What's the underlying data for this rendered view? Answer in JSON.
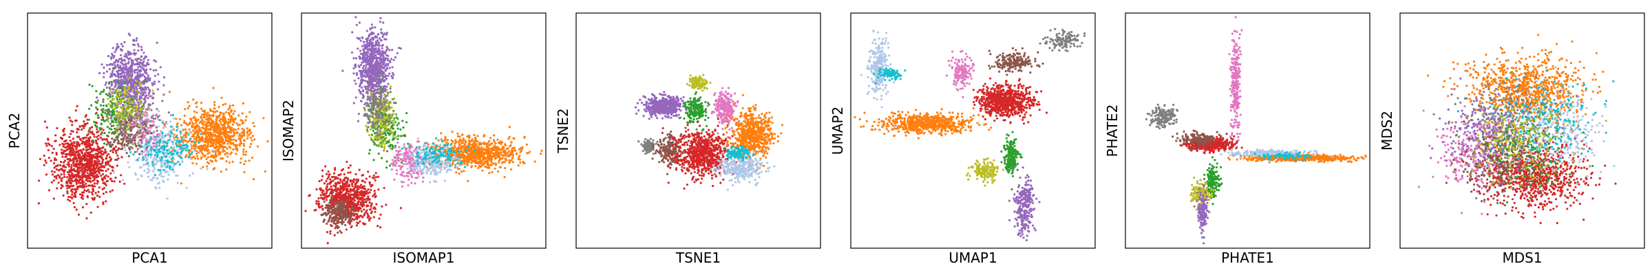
{
  "figure": {
    "palette": {
      "red": "#d62728",
      "orange": "#ff7f0e",
      "purple": "#9467bd",
      "green": "#2ca02c",
      "light_blue": "#aec7e8",
      "cyan": "#17becf",
      "pink": "#e377c2",
      "brown": "#8c564b",
      "gray": "#7f7f7f",
      "olive": "#bcbd22"
    }
  },
  "chart_data": [
    {
      "type": "scatter",
      "xlabel": "PCA1",
      "ylabel": "PCA2",
      "xticks": [],
      "yticks": [],
      "grid": false,
      "xlim": [
        0,
        100
      ],
      "ylim": [
        0,
        100
      ],
      "clusters": [
        {
          "color": "red",
          "center": [
            22,
            36
          ],
          "spread": [
            9,
            12
          ],
          "count": 900
        },
        {
          "color": "orange",
          "center": [
            77,
            48
          ],
          "spread": [
            11,
            9
          ],
          "count": 800
        },
        {
          "color": "purple",
          "center": [
            42,
            72
          ],
          "spread": [
            7,
            11
          ],
          "count": 700
        },
        {
          "color": "light_blue",
          "center": [
            54,
            40
          ],
          "spread": [
            9,
            9
          ],
          "count": 300
        },
        {
          "color": "green",
          "center": [
            36,
            58
          ],
          "spread": [
            7,
            10
          ],
          "count": 200
        },
        {
          "color": "pink",
          "center": [
            46,
            50
          ],
          "spread": [
            6,
            7
          ],
          "count": 150
        },
        {
          "color": "cyan",
          "center": [
            58,
            42
          ],
          "spread": [
            8,
            7
          ],
          "count": 150
        },
        {
          "color": "brown",
          "center": [
            40,
            48
          ],
          "spread": [
            6,
            6
          ],
          "count": 120
        },
        {
          "color": "gray",
          "center": [
            44,
            56
          ],
          "spread": [
            7,
            8
          ],
          "count": 120
        },
        {
          "color": "olive",
          "center": [
            40,
            60
          ],
          "spread": [
            6,
            8
          ],
          "count": 120
        }
      ]
    },
    {
      "type": "scatter",
      "xlabel": "ISOMAP1",
      "ylabel": "ISOMAP2",
      "xticks": [],
      "yticks": [],
      "grid": false,
      "xlim": [
        0,
        100
      ],
      "ylim": [
        0,
        100
      ],
      "clusters": [
        {
          "color": "red",
          "center": [
            18,
            20
          ],
          "spread": [
            9,
            8
          ],
          "count": 700
        },
        {
          "color": "brown",
          "center": [
            14,
            14
          ],
          "spread": [
            5,
            5
          ],
          "count": 200
        },
        {
          "color": "orange",
          "center": [
            72,
            40
          ],
          "spread": [
            14,
            5
          ],
          "count": 800
        },
        {
          "color": "purple",
          "center": [
            29,
            78
          ],
          "spread": [
            5,
            11
          ],
          "count": 700
        },
        {
          "color": "green",
          "center": [
            34,
            50
          ],
          "spread": [
            5,
            9
          ],
          "count": 200
        },
        {
          "color": "olive",
          "center": [
            32,
            56
          ],
          "spread": [
            4,
            9
          ],
          "count": 180
        },
        {
          "color": "gray",
          "center": [
            30,
            60
          ],
          "spread": [
            4,
            9
          ],
          "count": 180
        },
        {
          "color": "pink",
          "center": [
            44,
            36
          ],
          "spread": [
            5,
            6
          ],
          "count": 200
        },
        {
          "color": "light_blue",
          "center": [
            54,
            36
          ],
          "spread": [
            8,
            5
          ],
          "count": 250
        },
        {
          "color": "cyan",
          "center": [
            56,
            40
          ],
          "spread": [
            8,
            4
          ],
          "count": 120
        }
      ]
    },
    {
      "type": "scatter",
      "xlabel": "TSNE1",
      "ylabel": "TSNE2",
      "xticks": [],
      "yticks": [],
      "grid": false,
      "xlim": [
        0,
        100
      ],
      "ylim": [
        0,
        100
      ],
      "clusters": [
        {
          "color": "purple",
          "center": [
            35,
            61
          ],
          "spread": [
            6,
            3
          ],
          "count": 500
        },
        {
          "color": "olive",
          "center": [
            50,
            71
          ],
          "spread": [
            3,
            2
          ],
          "count": 120
        },
        {
          "color": "green",
          "center": [
            49,
            59
          ],
          "spread": [
            3,
            4
          ],
          "count": 200
        },
        {
          "color": "pink",
          "center": [
            61,
            60
          ],
          "spread": [
            3,
            5
          ],
          "count": 250
        },
        {
          "color": "gray",
          "center": [
            29,
            43
          ],
          "spread": [
            2,
            2
          ],
          "count": 100
        },
        {
          "color": "brown",
          "center": [
            38,
            41
          ],
          "spread": [
            4,
            5
          ],
          "count": 200
        },
        {
          "color": "red",
          "center": [
            52,
            40
          ],
          "spread": [
            8,
            7
          ],
          "count": 700
        },
        {
          "color": "orange",
          "center": [
            73,
            48
          ],
          "spread": [
            6,
            7
          ],
          "count": 600
        },
        {
          "color": "light_blue",
          "center": [
            68,
            34
          ],
          "spread": [
            7,
            4
          ],
          "count": 300
        },
        {
          "color": "cyan",
          "center": [
            67,
            40
          ],
          "spread": [
            4,
            2
          ],
          "count": 120
        }
      ]
    },
    {
      "type": "scatter",
      "xlabel": "UMAP1",
      "ylabel": "UMAP2",
      "xticks": [],
      "yticks": [],
      "grid": false,
      "xlim": [
        0,
        100
      ],
      "ylim": [
        0,
        100
      ],
      "clusters": [
        {
          "color": "orange",
          "center": [
            30,
            53
          ],
          "spread": [
            14,
            3
          ],
          "count": 600
        },
        {
          "color": "light_blue",
          "center": [
            10,
            78
          ],
          "spread": [
            3,
            9
          ],
          "count": 250
        },
        {
          "color": "cyan",
          "center": [
            15,
            75
          ],
          "spread": [
            3,
            2
          ],
          "count": 100
        },
        {
          "color": "pink",
          "center": [
            45,
            76
          ],
          "spread": [
            3,
            5
          ],
          "count": 150
        },
        {
          "color": "brown",
          "center": [
            67,
            80
          ],
          "spread": [
            7,
            3
          ],
          "count": 200
        },
        {
          "color": "gray",
          "center": [
            88,
            90
          ],
          "spread": [
            5,
            3
          ],
          "count": 120
        },
        {
          "color": "red",
          "center": [
            64,
            63
          ],
          "spread": [
            8,
            5
          ],
          "count": 700
        },
        {
          "color": "green",
          "center": [
            66,
            38
          ],
          "spread": [
            2,
            6
          ],
          "count": 200
        },
        {
          "color": "olive",
          "center": [
            55,
            32
          ],
          "spread": [
            4,
            3
          ],
          "count": 150
        },
        {
          "color": "purple",
          "center": [
            72,
            16
          ],
          "spread": [
            3,
            9
          ],
          "count": 250
        }
      ]
    },
    {
      "type": "scatter",
      "xlabel": "PHATE1",
      "ylabel": "PHATE2",
      "xticks": [],
      "yticks": [],
      "grid": false,
      "xlim": [
        0,
        100
      ],
      "ylim": [
        0,
        100
      ],
      "clusters": [
        {
          "color": "orange",
          "center": [
            72,
            38
          ],
          "spread": [
            15,
            1
          ],
          "count": 600
        },
        {
          "color": "light_blue",
          "center": [
            60,
            40
          ],
          "spread": [
            12,
            1
          ],
          "count": 200
        },
        {
          "color": "cyan",
          "center": [
            65,
            39
          ],
          "spread": [
            8,
            1
          ],
          "count": 80
        },
        {
          "color": "pink",
          "center": [
            45,
            70
          ],
          "spread": [
            1.5,
            15
          ],
          "count": 250
        },
        {
          "color": "gray",
          "center": [
            14,
            56
          ],
          "spread": [
            4,
            3
          ],
          "count": 150
        },
        {
          "color": "red",
          "center": [
            34,
            44
          ],
          "spread": [
            7,
            2
          ],
          "count": 500
        },
        {
          "color": "brown",
          "center": [
            30,
            46
          ],
          "spread": [
            5,
            2
          ],
          "count": 150
        },
        {
          "color": "green",
          "center": [
            35,
            28
          ],
          "spread": [
            2,
            5
          ],
          "count": 150
        },
        {
          "color": "olive",
          "center": [
            30,
            22
          ],
          "spread": [
            3,
            4
          ],
          "count": 150
        },
        {
          "color": "purple",
          "center": [
            31,
            14
          ],
          "spread": [
            1.5,
            6
          ],
          "count": 150
        }
      ]
    },
    {
      "type": "scatter",
      "xlabel": "MDS1",
      "ylabel": "MDS2",
      "xticks": [],
      "yticks": [],
      "grid": false,
      "xlim": [
        0,
        100
      ],
      "ylim": [
        0,
        100
      ],
      "clusters": [
        {
          "color": "orange",
          "center": [
            52,
            68
          ],
          "spread": [
            18,
            10
          ],
          "count": 800
        },
        {
          "color": "red",
          "center": [
            55,
            30
          ],
          "spread": [
            16,
            10
          ],
          "count": 800
        },
        {
          "color": "purple",
          "center": [
            35,
            48
          ],
          "spread": [
            14,
            12
          ],
          "count": 300
        },
        {
          "color": "light_blue",
          "center": [
            65,
            50
          ],
          "spread": [
            14,
            12
          ],
          "count": 300
        },
        {
          "color": "pink",
          "center": [
            30,
            40
          ],
          "spread": [
            12,
            12
          ],
          "count": 250
        },
        {
          "color": "green",
          "center": [
            50,
            40
          ],
          "spread": [
            14,
            12
          ],
          "count": 200
        },
        {
          "color": "cyan",
          "center": [
            60,
            55
          ],
          "spread": [
            14,
            12
          ],
          "count": 200
        },
        {
          "color": "brown",
          "center": [
            40,
            35
          ],
          "spread": [
            12,
            10
          ],
          "count": 200
        },
        {
          "color": "gray",
          "center": [
            45,
            55
          ],
          "spread": [
            14,
            12
          ],
          "count": 200
        },
        {
          "color": "olive",
          "center": [
            48,
            45
          ],
          "spread": [
            14,
            12
          ],
          "count": 200
        }
      ]
    }
  ]
}
